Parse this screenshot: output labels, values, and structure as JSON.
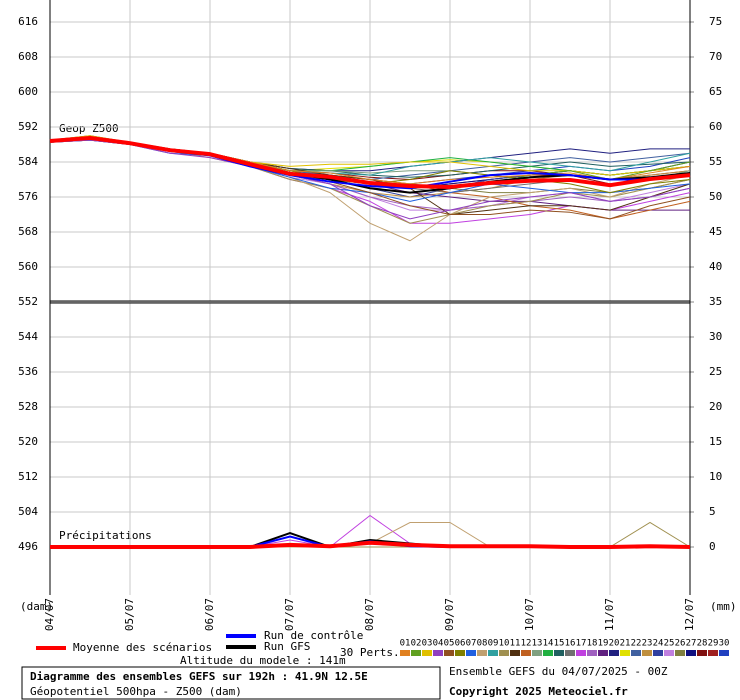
{
  "chart_data": {
    "type": "line",
    "title": "Diagramme des ensembles GEFS sur 192h : 41.9N 12.5E",
    "subtitle": "Géopotentiel 500hpa - Z500 (dam)",
    "run_label": "Ensemble GEFS du 04/07/2025 - 00Z",
    "copyright": "Copyright 2025 Meteociel.fr",
    "altitude": "Altitude du modele : 141m",
    "perts_label": "30 Perts.",
    "annotations": [
      "Geop Z500",
      "Précipitations"
    ],
    "ylabel": "(dam)",
    "y2label": "(mm)",
    "grid": true,
    "reference_line": 552,
    "x": [
      0,
      12,
      24,
      36,
      48,
      60,
      72,
      84,
      96,
      108,
      120,
      132,
      144,
      156,
      168,
      180,
      192
    ],
    "xlim": [
      0,
      192
    ],
    "xticks": [
      {
        "value": 0,
        "label": "04/07"
      },
      {
        "value": 24,
        "label": "05/07"
      },
      {
        "value": 48,
        "label": "06/07"
      },
      {
        "value": 72,
        "label": "07/07"
      },
      {
        "value": 96,
        "label": "08/07"
      },
      {
        "value": 120,
        "label": "09/07"
      },
      {
        "value": 144,
        "label": "10/07"
      },
      {
        "value": 168,
        "label": "11/07"
      },
      {
        "value": 192,
        "label": "12/07"
      }
    ],
    "ylim": [
      486,
      620
    ],
    "yticks": [
      496,
      504,
      512,
      520,
      528,
      536,
      544,
      552,
      560,
      568,
      576,
      584,
      592,
      600,
      608,
      616
    ],
    "y2lim": [
      -6.25,
      77.5
    ],
    "y2ticks": [
      0,
      5,
      10,
      15,
      20,
      25,
      30,
      35,
      40,
      45,
      50,
      55,
      60,
      65,
      70,
      75
    ],
    "series": [
      {
        "name": "Moyenne des scénarios",
        "color": "#ff0000",
        "line_width": 4,
        "values": [
          588.8,
          589.5,
          588.3,
          586.7,
          585.8,
          583.5,
          581.3,
          580.6,
          579.2,
          578.5,
          578.3,
          579.2,
          579.7,
          579.9,
          578.7,
          580.1,
          581.0
        ],
        "precip": [
          0,
          0,
          0,
          0,
          0,
          0,
          0.3,
          0.1,
          0.6,
          0.3,
          0.1,
          0.1,
          0.1,
          0,
          0,
          0.1,
          0
        ]
      },
      {
        "name": "Run de contrôle",
        "color": "#0000ff",
        "line_width": 2,
        "values": [
          588.8,
          589.5,
          588.3,
          586.5,
          585.5,
          583,
          581,
          579.5,
          578.5,
          578,
          579.5,
          581,
          581.5,
          581,
          580,
          580,
          581
        ],
        "precip": [
          0,
          0,
          0,
          0,
          0,
          0,
          1.5,
          0,
          0.8,
          0.1,
          0,
          0.1,
          0,
          0,
          0,
          0,
          0
        ]
      },
      {
        "name": "Run GFS",
        "color": "#000000",
        "line_width": 2,
        "values": [
          588.8,
          589.5,
          588.3,
          586.8,
          585.8,
          583.5,
          581.5,
          580,
          578,
          577,
          578,
          579.5,
          580.5,
          581,
          580,
          580.5,
          581.5
        ],
        "precip": [
          0,
          0,
          0,
          0,
          0,
          0,
          2,
          0,
          1,
          0.5,
          0,
          0,
          0,
          0,
          0,
          0,
          0
        ]
      },
      {
        "name": "01",
        "color": "#e08020",
        "line_width": 1,
        "values": [
          589,
          589.5,
          588.5,
          587,
          586,
          584,
          582,
          581.5,
          580,
          579,
          580,
          580.5,
          581,
          581.5,
          580,
          581.5,
          583
        ]
      },
      {
        "name": "02",
        "color": "#60a020",
        "line_width": 1,
        "values": [
          588.5,
          589.5,
          588,
          586.5,
          585.5,
          583,
          581,
          580,
          578,
          577,
          578,
          579,
          581,
          582,
          580,
          582,
          584
        ]
      },
      {
        "name": "03",
        "color": "#e0c000",
        "line_width": 1,
        "values": [
          589,
          590,
          588.5,
          587,
          586,
          584,
          583,
          583.5,
          583.5,
          584,
          584,
          583,
          582,
          582,
          581,
          582,
          583
        ]
      },
      {
        "name": "04",
        "color": "#9040c0",
        "line_width": 1,
        "values": [
          588.5,
          589,
          588,
          586,
          585,
          583,
          581,
          579,
          574,
          571,
          573,
          575,
          576,
          577,
          575,
          576,
          578
        ]
      },
      {
        "name": "05",
        "color": "#905020",
        "line_width": 1,
        "values": [
          589,
          589.5,
          588.5,
          587,
          586,
          583.5,
          581,
          579.5,
          577,
          574,
          572,
          572,
          573,
          572.5,
          571,
          574,
          576
        ]
      },
      {
        "name": "06",
        "color": "#808000",
        "line_width": 1,
        "values": [
          589,
          589.5,
          588,
          586.5,
          586,
          584,
          582,
          580,
          579,
          580,
          582,
          581,
          580,
          579,
          577,
          579,
          580
        ]
      },
      {
        "name": "07",
        "color": "#2060e0",
        "line_width": 1,
        "values": [
          588.5,
          589,
          588,
          586,
          585.5,
          583,
          580.5,
          578,
          577,
          575,
          577,
          579,
          578,
          577,
          577,
          578,
          579
        ]
      },
      {
        "name": "08",
        "color": "#c0a070",
        "line_width": 1,
        "values": [
          589,
          589.5,
          588,
          586.5,
          585,
          583,
          580.5,
          577,
          570,
          566,
          572,
          576,
          577,
          578,
          576,
          579,
          581
        ],
        "precip": [
          0,
          0,
          0,
          0,
          0,
          0,
          0,
          0,
          0.5,
          3.5,
          3.5,
          0,
          0,
          0,
          0,
          0,
          0
        ]
      },
      {
        "name": "09",
        "color": "#30a0a0",
        "line_width": 1,
        "values": [
          589,
          589.5,
          588.5,
          587,
          586,
          584,
          582,
          581.5,
          581,
          583,
          584,
          585,
          584,
          583,
          582,
          584,
          586
        ]
      },
      {
        "name": "10",
        "color": "#a09050",
        "line_width": 1,
        "values": [
          588.5,
          589,
          588.5,
          586.5,
          585.5,
          583,
          580,
          578,
          574,
          570,
          572,
          574,
          575,
          577,
          576,
          578,
          580
        ],
        "precip": [
          0,
          0,
          0,
          0,
          0,
          0,
          0,
          0,
          0,
          0,
          0,
          0,
          0,
          0,
          0,
          3.5,
          0
        ]
      },
      {
        "name": "11",
        "color": "#503010",
        "line_width": 1,
        "values": [
          589,
          590,
          588.5,
          587,
          586,
          584,
          582.5,
          581,
          580,
          578,
          572,
          573,
          574,
          574,
          573,
          576,
          579
        ]
      },
      {
        "name": "12",
        "color": "#c06020",
        "line_width": 1,
        "values": [
          589,
          589.5,
          588.5,
          587,
          586,
          583.5,
          581.5,
          581,
          580,
          579,
          577,
          576,
          574,
          573,
          571,
          573,
          575
        ]
      },
      {
        "name": "13",
        "color": "#80a080",
        "line_width": 1,
        "values": [
          589,
          589.5,
          588.5,
          587,
          586,
          584,
          582,
          582,
          581.5,
          582,
          582,
          581,
          580,
          580,
          579,
          580,
          582
        ]
      },
      {
        "name": "14",
        "color": "#20b040",
        "line_width": 1,
        "values": [
          588.5,
          589.5,
          588,
          586.5,
          585.5,
          583.5,
          582,
          582,
          583,
          584,
          585,
          584,
          583,
          582,
          581,
          582,
          583
        ]
      },
      {
        "name": "15",
        "color": "#206060",
        "line_width": 1,
        "values": [
          589,
          589.5,
          588.5,
          587,
          586,
          584,
          582.5,
          582,
          581,
          580.5,
          581,
          582,
          583,
          584,
          583,
          583.5,
          584
        ]
      },
      {
        "name": "16",
        "color": "#707070",
        "line_width": 1,
        "values": [
          589,
          589.5,
          588.5,
          587,
          586,
          583.5,
          581,
          580,
          579,
          578,
          577,
          578,
          579,
          580,
          579,
          580,
          581
        ]
      },
      {
        "name": "17",
        "color": "#c040e0",
        "line_width": 1,
        "values": [
          588.5,
          589,
          588,
          586.5,
          585.5,
          583,
          580,
          578,
          575,
          570,
          570,
          571,
          572,
          574,
          573,
          575,
          577
        ],
        "precip": [
          0,
          0,
          0,
          0,
          0,
          0,
          1,
          0,
          4.5,
          0.5,
          0,
          0,
          0,
          0,
          0,
          0,
          0
        ]
      },
      {
        "name": "18",
        "color": "#a060c0",
        "line_width": 1,
        "values": [
          589,
          589.5,
          588.5,
          587,
          586,
          583.5,
          581,
          579,
          576,
          574,
          573,
          574,
          575,
          576,
          575,
          576,
          578
        ]
      },
      {
        "name": "19",
        "color": "#602080",
        "line_width": 1,
        "values": [
          589,
          589.5,
          588.5,
          586.5,
          585.5,
          583.5,
          581.5,
          580.5,
          579,
          577,
          576,
          575,
          575,
          574,
          573,
          573,
          573
        ]
      },
      {
        "name": "20",
        "color": "#202080",
        "line_width": 1,
        "values": [
          589,
          589.5,
          588.5,
          587,
          586,
          584,
          582.5,
          582,
          582,
          583,
          584,
          585,
          586,
          587,
          586,
          587,
          587
        ]
      },
      {
        "name": "21",
        "color": "#e0e000",
        "line_width": 1,
        "values": [
          589,
          589.5,
          588.5,
          587,
          586,
          584,
          582,
          582.5,
          583,
          584,
          584.5,
          584,
          583,
          582,
          581,
          582,
          583
        ]
      },
      {
        "name": "22",
        "color": "#4060a0",
        "line_width": 1,
        "values": [
          589,
          589.5,
          588.5,
          587,
          586,
          584,
          582,
          581,
          580,
          581,
          582,
          583,
          584,
          585,
          584,
          585,
          586
        ]
      },
      {
        "name": "23",
        "color": "#c09040",
        "line_width": 1,
        "values": [
          589,
          589.5,
          588.5,
          587,
          586,
          583.5,
          581,
          579,
          577,
          576,
          577,
          578,
          580,
          581,
          580,
          581,
          582
        ]
      },
      {
        "name": "24",
        "color": "#3040a0",
        "line_width": 1,
        "values": [
          588.5,
          589,
          588,
          586.5,
          585.5,
          583,
          581,
          580,
          578,
          576,
          578,
          580,
          581,
          582,
          581,
          582,
          583
        ]
      },
      {
        "name": "25",
        "color": "#c080e0",
        "line_width": 1,
        "values": [
          589,
          589.5,
          588,
          586.5,
          585.5,
          583,
          580.5,
          579,
          576,
          573,
          573,
          574,
          576,
          577,
          575,
          577,
          579
        ]
      },
      {
        "name": "26",
        "color": "#808040",
        "line_width": 1,
        "values": [
          589,
          589.5,
          588.5,
          587,
          586,
          583.5,
          581.5,
          581,
          580,
          579,
          578,
          577,
          577,
          578,
          577,
          578,
          580
        ]
      },
      {
        "name": "27",
        "color": "#101080",
        "line_width": 1,
        "values": [
          589,
          589.5,
          588.5,
          587,
          586,
          584,
          582,
          581,
          579,
          578,
          579,
          580,
          581,
          582,
          581,
          582,
          584
        ]
      },
      {
        "name": "28",
        "color": "#801010",
        "line_width": 1,
        "values": [
          589,
          589.5,
          588.5,
          587,
          586,
          584,
          582,
          581.5,
          580.5,
          580,
          581,
          582,
          582,
          581,
          579,
          580,
          581
        ]
      },
      {
        "name": "29",
        "color": "#a02020",
        "line_width": 1,
        "values": [
          588.5,
          589,
          588,
          586.5,
          585.5,
          583,
          581,
          580,
          579,
          578,
          579,
          580,
          581,
          581,
          580,
          581,
          582
        ]
      },
      {
        "name": "30",
        "color": "#2040c0",
        "line_width": 1,
        "values": [
          589,
          589.5,
          588.5,
          587,
          586,
          584,
          582,
          581,
          579,
          579,
          580,
          581,
          582,
          583,
          582,
          583,
          585
        ]
      }
    ]
  }
}
